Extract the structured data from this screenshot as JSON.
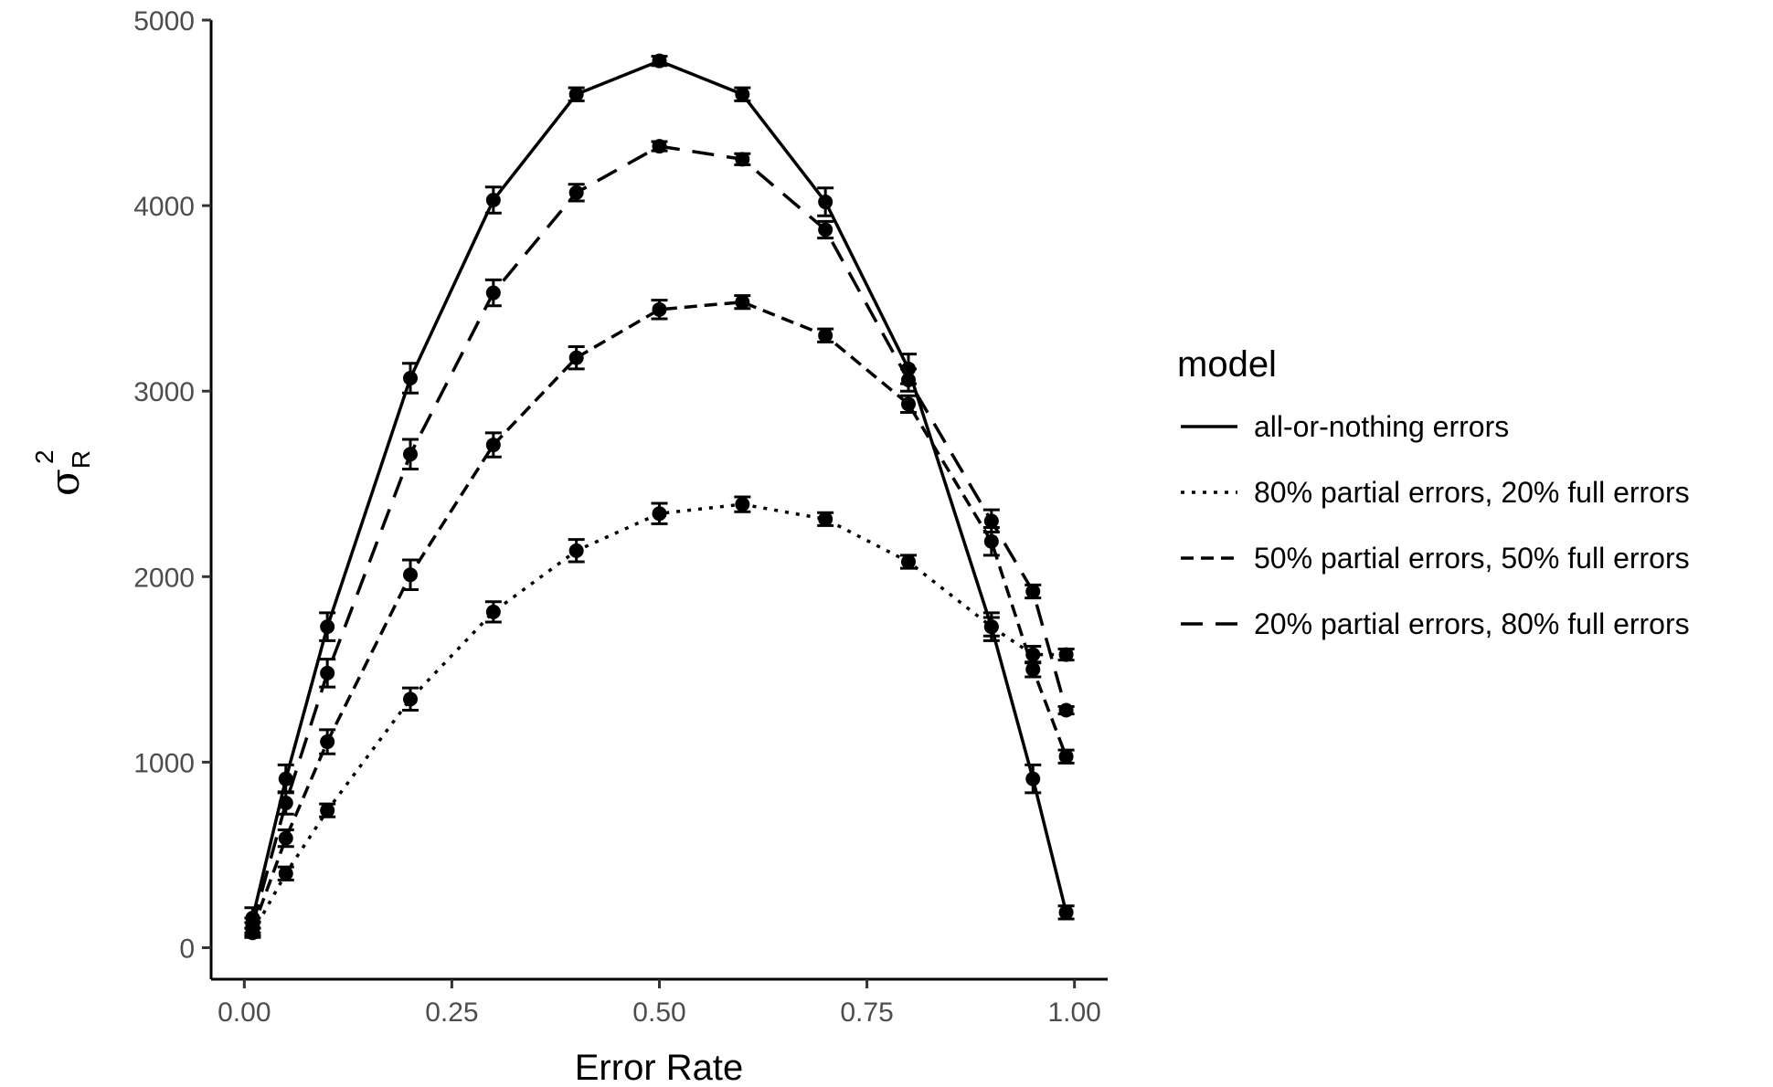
{
  "chart_data": {
    "type": "line",
    "title": "",
    "xlabel": "Error Rate",
    "ylabel": {
      "symbol": "σ",
      "superscript": "2",
      "subscript": "R"
    },
    "xlim": [
      -0.04,
      1.04
    ],
    "ylim": [
      -170,
      5000
    ],
    "xticks": [
      0,
      0.25,
      0.5,
      0.75,
      1
    ],
    "xtick_labels": [
      "0.00",
      "0.25",
      "0.50",
      "0.75",
      "1.00"
    ],
    "yticks": [
      0,
      1000,
      2000,
      3000,
      4000,
      5000
    ],
    "ytick_labels": [
      "0",
      "1000",
      "2000",
      "3000",
      "4000",
      "5000"
    ],
    "grid": false,
    "legend_title": "model",
    "legend_position": "right",
    "x": [
      0.01,
      0.05,
      0.1,
      0.2,
      0.3,
      0.4,
      0.5,
      0.6,
      0.7,
      0.8,
      0.9,
      0.95,
      0.99
    ],
    "series": [
      {
        "name": "all-or-nothing errors",
        "dash": "solid",
        "values": [
          160,
          910,
          1730,
          3070,
          4030,
          4600,
          4780,
          4600,
          4020,
          3120,
          1730,
          910,
          190
        ],
        "errors": [
          55,
          75,
          75,
          80,
          70,
          35,
          25,
          35,
          75,
          80,
          75,
          75,
          35
        ]
      },
      {
        "name": "80% partial errors, 20% full errors",
        "dash": "dotted",
        "values": [
          80,
          400,
          740,
          1340,
          1810,
          2140,
          2340,
          2390,
          2310,
          2080,
          1730,
          1580,
          1580
        ],
        "errors": [
          25,
          35,
          35,
          60,
          55,
          60,
          55,
          40,
          35,
          35,
          50,
          45,
          30
        ]
      },
      {
        "name": "50% partial errors, 50% full errors",
        "dash": "dashed",
        "values": [
          100,
          590,
          1110,
          2010,
          2710,
          3180,
          3440,
          3480,
          3300,
          2930,
          2190,
          1500,
          1030
        ],
        "errors": [
          35,
          45,
          65,
          80,
          65,
          60,
          50,
          35,
          35,
          45,
          75,
          40,
          35
        ]
      },
      {
        "name": "20% partial errors, 80% full errors",
        "dash": "longdash",
        "values": [
          120,
          780,
          1480,
          2660,
          3530,
          4070,
          4320,
          4250,
          3870,
          3060,
          2300,
          1920,
          1280
        ],
        "errors": [
          40,
          60,
          75,
          80,
          70,
          45,
          25,
          30,
          45,
          60,
          60,
          35,
          20
        ]
      }
    ]
  }
}
